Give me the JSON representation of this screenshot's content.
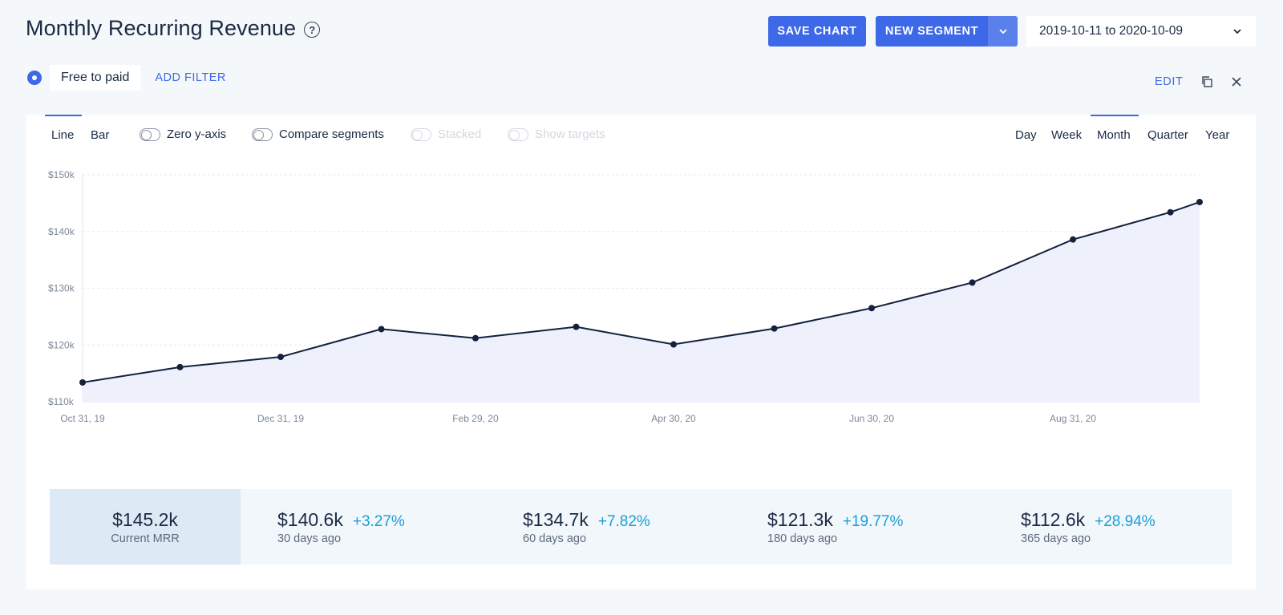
{
  "header": {
    "title": "Monthly Recurring Revenue",
    "help_glyph": "?",
    "save_label": "SAVE CHART",
    "segment_label": "NEW SEGMENT",
    "date_range": "2019-10-11 to 2020-10-09"
  },
  "filters": {
    "segment_name": "Free to paid",
    "add_label": "ADD FILTER"
  },
  "card_actions": {
    "edit_label": "EDIT"
  },
  "toolbar": {
    "chart_types": [
      "Line",
      "Bar"
    ],
    "active_chart_type": "Line",
    "toggles": [
      {
        "label": "Zero y-axis",
        "enabled": true
      },
      {
        "label": "Compare segments",
        "enabled": true
      },
      {
        "label": "Stacked",
        "enabled": false
      },
      {
        "label": "Show targets",
        "enabled": false
      }
    ],
    "periods": [
      "Day",
      "Week",
      "Month",
      "Quarter",
      "Year"
    ],
    "active_period": "Month"
  },
  "chart_data": {
    "type": "area",
    "x": [
      "Oct 31, 19",
      "Nov 30, 19",
      "Dec 31, 19",
      "Jan 31, 20",
      "Feb 29, 20",
      "Mar 31, 20",
      "Apr 30, 20",
      "May 31, 20",
      "Jun 30, 20",
      "Jul 31, 20",
      "Aug 31, 20",
      "Sep 30, 20",
      "Oct 09, 20"
    ],
    "x_tick_labels": [
      "Oct 31, 19",
      "Dec 31, 19",
      "Feb 29, 20",
      "Apr 30, 20",
      "Jun 30, 20",
      "Aug 31, 20"
    ],
    "values": [
      113.4,
      116.1,
      117.9,
      122.8,
      121.2,
      123.2,
      120.1,
      122.9,
      126.5,
      131.0,
      138.6,
      143.4,
      145.2
    ],
    "y_ticks": [
      "$110k",
      "$120k",
      "$130k",
      "$140k",
      "$150k"
    ],
    "ylim": [
      110,
      150
    ],
    "unit": "$k",
    "line_color": "#13213d",
    "fill_color": "#eef1fc",
    "grid": true
  },
  "stats": {
    "current": {
      "value": "$145.2k",
      "label": "Current MRR"
    },
    "history": [
      {
        "value": "$140.6k",
        "change": "+3.27%",
        "label": "30 days ago"
      },
      {
        "value": "$134.7k",
        "change": "+7.82%",
        "label": "60 days ago"
      },
      {
        "value": "$121.3k",
        "change": "+19.77%",
        "label": "180 days ago"
      },
      {
        "value": "$112.6k",
        "change": "+28.94%",
        "label": "365 days ago"
      }
    ]
  },
  "colors": {
    "accent": "#3d68e8",
    "positive_change": "#1b9fd8"
  }
}
